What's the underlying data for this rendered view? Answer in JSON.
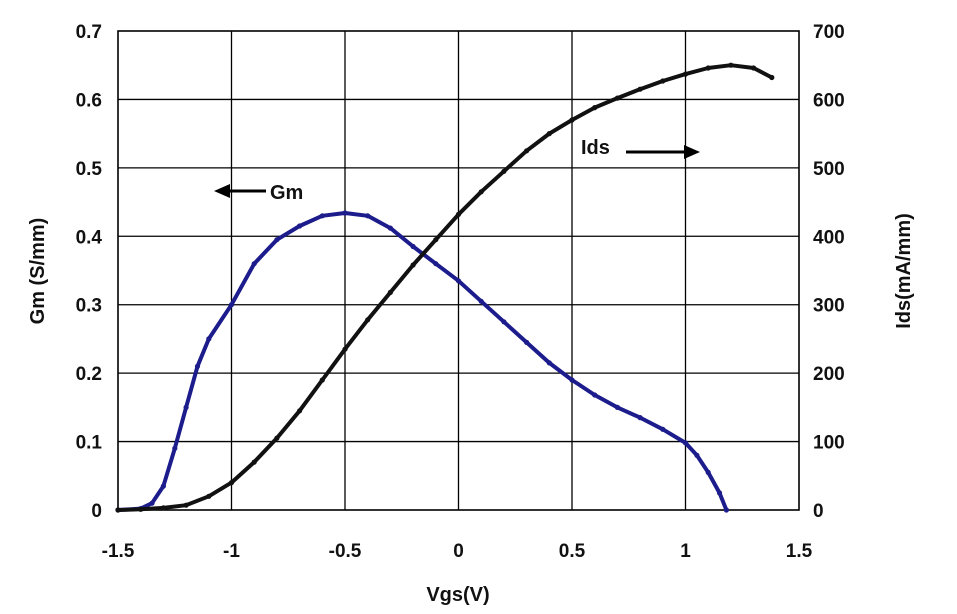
{
  "chart_data": {
    "type": "line",
    "xlabel": "Vgs(V)",
    "ylabel_left": "Gm (S/mm)",
    "ylabel_right": "Ids(mA/mm)",
    "xlim": [
      -1.5,
      1.5
    ],
    "ylim_left": [
      0,
      0.7
    ],
    "ylim_right": [
      0,
      700
    ],
    "x_ticks": [
      "-1.5",
      "-1",
      "-0.5",
      "0",
      "0.5",
      "1",
      "1.5"
    ],
    "y_left_ticks": [
      "0",
      "0.1",
      "0.2",
      "0.3",
      "0.4",
      "0.5",
      "0.6",
      "0.7"
    ],
    "y_right_ticks": [
      "0",
      "100",
      "200",
      "300",
      "400",
      "500",
      "600",
      "700"
    ],
    "grid": true,
    "legend": "none",
    "series": [
      {
        "name": "Gm",
        "axis": "left",
        "color": "#1c1c8c",
        "points": [
          [
            -1.5,
            0.0
          ],
          [
            -1.4,
            0.002
          ],
          [
            -1.35,
            0.01
          ],
          [
            -1.3,
            0.035
          ],
          [
            -1.25,
            0.09
          ],
          [
            -1.2,
            0.15
          ],
          [
            -1.15,
            0.21
          ],
          [
            -1.1,
            0.25
          ],
          [
            -1.0,
            0.3
          ],
          [
            -0.9,
            0.36
          ],
          [
            -0.8,
            0.395
          ],
          [
            -0.7,
            0.415
          ],
          [
            -0.6,
            0.43
          ],
          [
            -0.5,
            0.434
          ],
          [
            -0.4,
            0.43
          ],
          [
            -0.3,
            0.412
          ],
          [
            -0.2,
            0.385
          ],
          [
            -0.1,
            0.36
          ],
          [
            0.0,
            0.335
          ],
          [
            0.1,
            0.305
          ],
          [
            0.2,
            0.275
          ],
          [
            0.3,
            0.245
          ],
          [
            0.4,
            0.215
          ],
          [
            0.5,
            0.19
          ],
          [
            0.6,
            0.168
          ],
          [
            0.7,
            0.15
          ],
          [
            0.8,
            0.135
          ],
          [
            0.9,
            0.118
          ],
          [
            1.0,
            0.098
          ],
          [
            1.05,
            0.08
          ],
          [
            1.1,
            0.055
          ],
          [
            1.15,
            0.025
          ],
          [
            1.18,
            0.0
          ]
        ]
      },
      {
        "name": "Ids",
        "axis": "right",
        "color": "#111111",
        "points": [
          [
            -1.5,
            0
          ],
          [
            -1.4,
            1
          ],
          [
            -1.3,
            3
          ],
          [
            -1.2,
            7
          ],
          [
            -1.1,
            20
          ],
          [
            -1.0,
            40
          ],
          [
            -0.9,
            70
          ],
          [
            -0.8,
            105
          ],
          [
            -0.7,
            145
          ],
          [
            -0.6,
            190
          ],
          [
            -0.5,
            235
          ],
          [
            -0.4,
            278
          ],
          [
            -0.3,
            318
          ],
          [
            -0.2,
            358
          ],
          [
            -0.1,
            395
          ],
          [
            0.0,
            432
          ],
          [
            0.1,
            465
          ],
          [
            0.2,
            495
          ],
          [
            0.3,
            525
          ],
          [
            0.4,
            550
          ],
          [
            0.5,
            570
          ],
          [
            0.6,
            588
          ],
          [
            0.7,
            602
          ],
          [
            0.8,
            615
          ],
          [
            0.9,
            627
          ],
          [
            1.0,
            637
          ],
          [
            1.1,
            646
          ],
          [
            1.2,
            650
          ],
          [
            1.3,
            646
          ],
          [
            1.38,
            632
          ]
        ]
      }
    ],
    "annotations": [
      {
        "text": "Gm",
        "arrow": "left"
      },
      {
        "text": "Ids",
        "arrow": "right"
      }
    ]
  }
}
